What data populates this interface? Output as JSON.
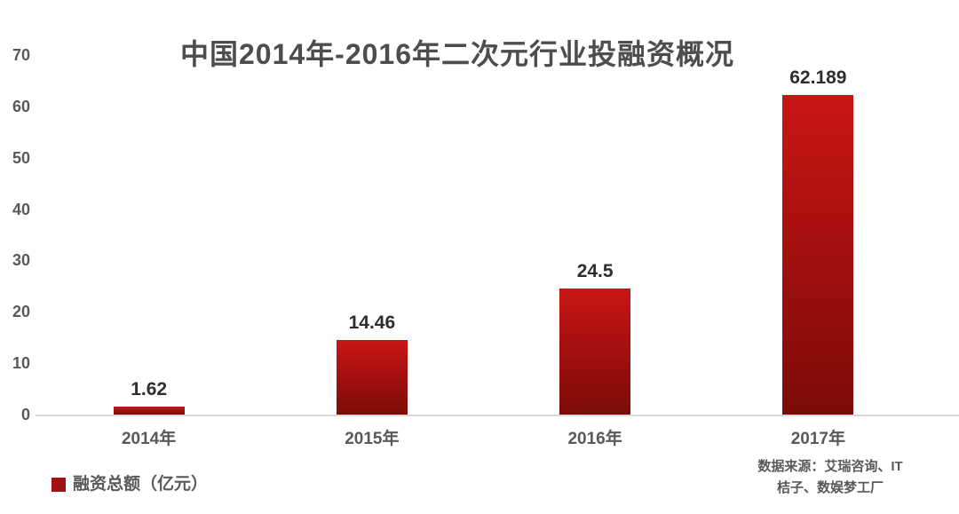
{
  "title": "中国2014年-2016年二次元行业投融资概况",
  "chart_data": {
    "type": "bar",
    "title": "中国2014年-2016年二次元行业投融资概况",
    "categories": [
      "2014年",
      "2015年",
      "2016年",
      "2017年"
    ],
    "values": [
      1.62,
      14.46,
      24.5,
      62.189
    ],
    "value_labels": [
      "1.62",
      "14.46",
      "24.5",
      "62.189"
    ],
    "series_name": "融资总额（亿元）",
    "xlabel": "",
    "ylabel": "",
    "ylim": [
      0,
      70
    ],
    "yticks": [
      0,
      10,
      20,
      30,
      40,
      50,
      60,
      70
    ],
    "grid": false,
    "legend": [
      "融资总额（亿元）"
    ],
    "legend_position": "bottom-left",
    "bar_style": "vertical gradient, bright red top to dark red bottom"
  },
  "legend": {
    "label": "融资总额（亿元）"
  },
  "source": {
    "line1": "数据来源：艾瑞咨询、IT",
    "line2": "桔子、数娱梦工厂"
  },
  "colors": {
    "bar_gradient_top": "#c91515",
    "bar_gradient_bottom": "#7c0b08",
    "legend_marker": "#a21212",
    "axis_text": "#595959",
    "title_text": "#4d4d4d",
    "value_text": "#2e2e2e",
    "baseline": "#d9d9d9",
    "background": "#ffffff"
  }
}
